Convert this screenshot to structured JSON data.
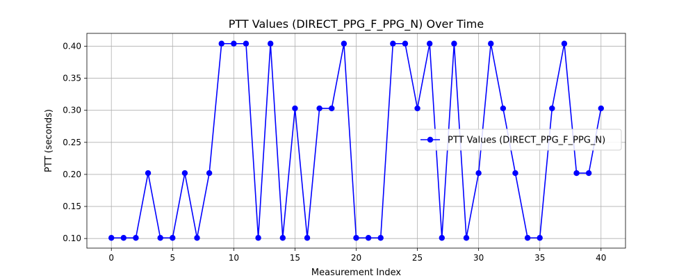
{
  "chart_data": {
    "type": "line",
    "title": "PTT Values (DIRECT_PPG_F_PPG_N) Over Time",
    "xlabel": "Measurement Index",
    "ylabel": "PTT (seconds)",
    "xlim": [
      -2,
      42
    ],
    "ylim": [
      0.085,
      0.42
    ],
    "xticks": [
      0,
      5,
      10,
      15,
      20,
      25,
      30,
      35,
      40
    ],
    "xtick_labels": [
      "0",
      "5",
      "10",
      "15",
      "20",
      "25",
      "30",
      "35",
      "40"
    ],
    "yticks": [
      0.1,
      0.15,
      0.2,
      0.25,
      0.3,
      0.35,
      0.4
    ],
    "ytick_labels": [
      "0.10",
      "0.15",
      "0.20",
      "0.25",
      "0.30",
      "0.35",
      "0.40"
    ],
    "grid": true,
    "legend_position": "center-right",
    "series": [
      {
        "name": "PTT Values (DIRECT_PPG_F_PPG_N)",
        "color": "#0000ff",
        "marker": "circle",
        "x": [
          0,
          1,
          2,
          3,
          4,
          5,
          6,
          7,
          8,
          9,
          10,
          11,
          12,
          13,
          14,
          15,
          16,
          17,
          18,
          19,
          20,
          21,
          22,
          23,
          24,
          25,
          26,
          27,
          28,
          29,
          30,
          31,
          32,
          33,
          34,
          35,
          36,
          37,
          38,
          39,
          40
        ],
        "y": [
          0.101,
          0.101,
          0.101,
          0.202,
          0.101,
          0.101,
          0.202,
          0.101,
          0.202,
          0.404,
          0.404,
          0.404,
          0.101,
          0.404,
          0.101,
          0.303,
          0.101,
          0.303,
          0.303,
          0.404,
          0.101,
          0.101,
          0.101,
          0.404,
          0.404,
          0.303,
          0.404,
          0.101,
          0.404,
          0.101,
          0.202,
          0.404,
          0.303,
          0.202,
          0.101,
          0.101,
          0.303,
          0.404,
          0.202,
          0.202,
          0.303
        ]
      }
    ]
  }
}
